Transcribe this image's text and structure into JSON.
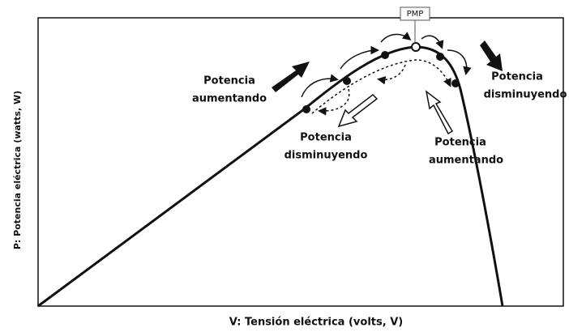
{
  "axes": {
    "x_label": "V: Tensión eléctrica (volts, V)",
    "y_label": "P: Potencia eléctrica (watts, W)"
  },
  "peak_label": "PMP",
  "annotations": [
    {
      "lines": [
        "Potencia",
        "aumentando"
      ]
    },
    {
      "lines": [
        "Potencia",
        "disminuyendo"
      ]
    },
    {
      "lines": [
        "Potencia",
        "aumentando"
      ]
    },
    {
      "lines": [
        "Potencia",
        "disminuyendo"
      ]
    }
  ]
}
